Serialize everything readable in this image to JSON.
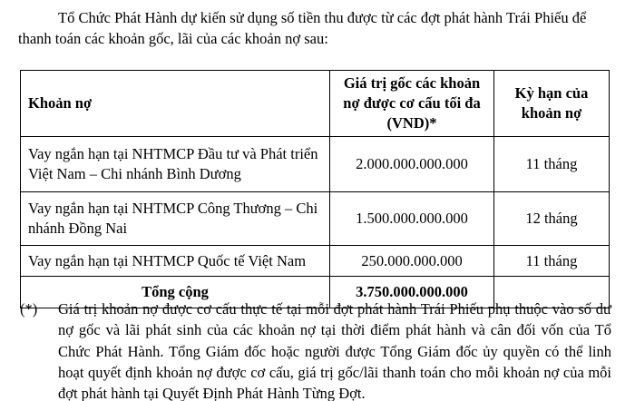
{
  "intro": {
    "line1": "Tổ Chức Phát Hành dự kiến sử dụng số tiền thu được từ các đợt phát hành Trái Phiếu để",
    "line2": "thanh toán các khoản gốc, lãi của các khoản nợ sau:"
  },
  "table": {
    "headers": [
      "Khoản nợ",
      "Giá trị gốc các khoản nợ được cơ cấu tối đa (VND)*",
      "Kỳ hạn của khoản nợ"
    ],
    "rows": [
      [
        "Vay ngắn hạn tại NHTMCP Đầu tư và Phát triển Việt Nam – Chi nhánh Bình Dương",
        "2.000.000.000.000",
        "11 tháng"
      ],
      [
        "Vay ngắn hạn tại NHTMCP Công Thương – Chi nhánh Đồng Nai",
        "1.500.000.000.000",
        "12 tháng"
      ],
      [
        "Vay ngắn hạn tại NHTMCP Quốc tế Việt Nam",
        "250.000.000.000",
        "11 tháng"
      ]
    ],
    "total": {
      "label": "Tổng cộng",
      "value": "3.750.000.000.000"
    }
  },
  "footnote": {
    "mark": "(*)",
    "text": "Giá trị khoản nợ được cơ cấu thực tế tại mỗi đợt phát hành Trái Phiếu phụ thuộc vào số dư nợ gốc và lãi phát sinh của các khoản nợ tại thời điểm phát hành và cân đối vốn của Tổ Chức Phát Hành. Tổng Giám đốc hoặc người được Tổng Giám đốc ủy quyền có thể linh hoạt quyết định khoản nợ được cơ cấu, giá trị gốc/lãi thanh toán cho mỗi khoản nợ của mỗi đợt phát hành tại Quyết Định Phát Hành Từng Đợt."
  }
}
